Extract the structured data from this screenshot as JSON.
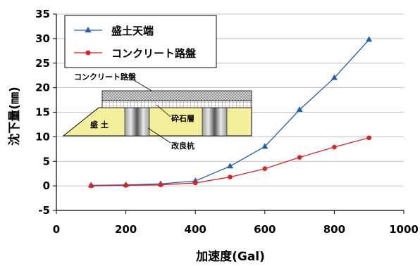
{
  "chart_data": {
    "type": "line",
    "xlabel": "加速度(Gal)",
    "ylabel": "沈下量(㎜)",
    "xlim": [
      0,
      1000
    ],
    "ylim": [
      -5,
      35
    ],
    "xticks": [
      0,
      200,
      400,
      600,
      800,
      1000
    ],
    "yticks": [
      -5,
      0,
      5,
      10,
      15,
      20,
      25,
      30,
      35
    ],
    "grid": "horizontal",
    "legend_position": "top-left",
    "series": [
      {
        "name": "盛土天端",
        "color": "#1f5fae",
        "marker": "triangle",
        "x": [
          100,
          200,
          300,
          400,
          500,
          600,
          700,
          800,
          900
        ],
        "y": [
          0.1,
          0.2,
          0.4,
          1.0,
          4.0,
          8.0,
          15.5,
          22.0,
          29.8
        ]
      },
      {
        "name": "コンクリート路盤",
        "color": "#e02020",
        "marker": "circle",
        "x": [
          100,
          200,
          300,
          400,
          500,
          600,
          700,
          800,
          900
        ],
        "y": [
          0.0,
          0.1,
          0.2,
          0.6,
          1.8,
          3.5,
          5.8,
          7.9,
          9.8
        ]
      }
    ],
    "annotations": {
      "concrete_label": "コンクリート路盤",
      "gravel_label": "砕石層",
      "embankment_label": "盛 土",
      "pile_label": "改良杭"
    }
  }
}
